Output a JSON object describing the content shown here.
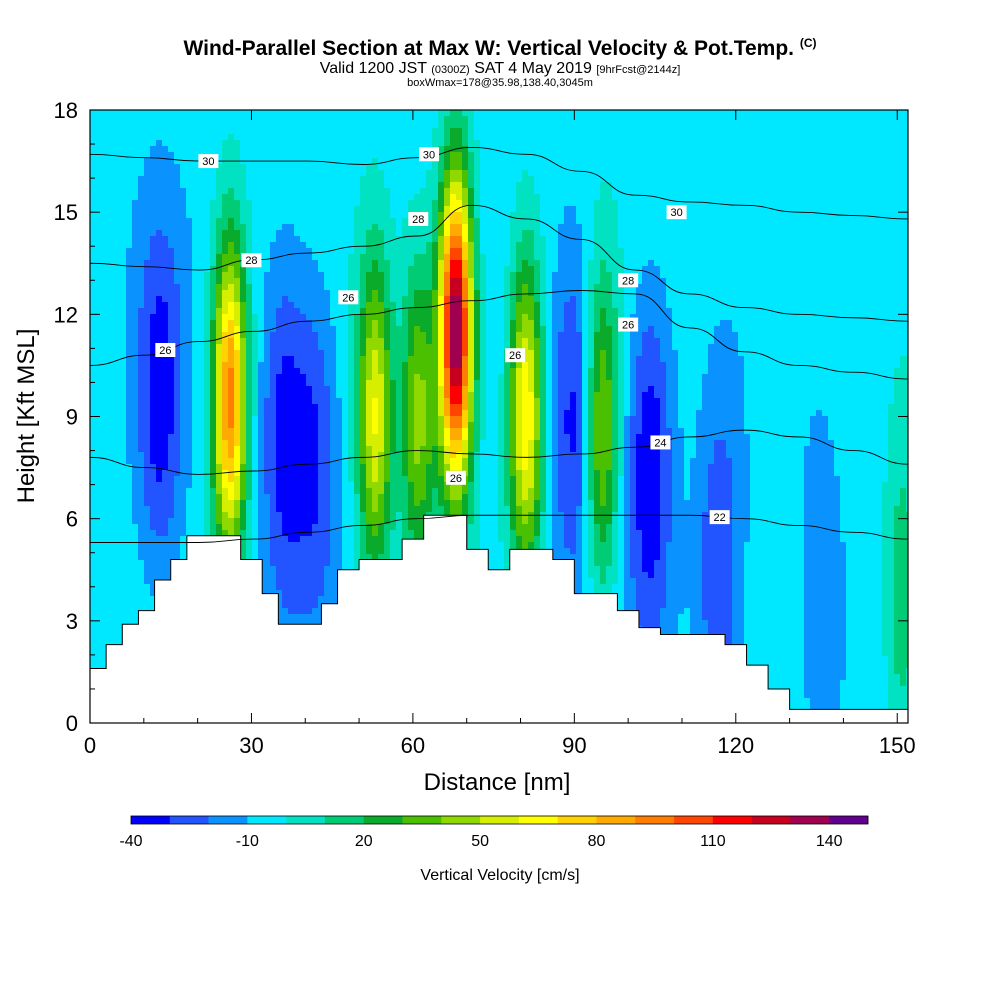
{
  "header": {
    "title": "Wind-Parallel Section at Max W: Vertical Velocity & Pot.Temp.",
    "title_mark": "(C)",
    "subtitle_main": "Valid 1200 JST",
    "subtitle_z": "(0300Z)",
    "subtitle_date": "SAT 4 May 2019",
    "subtitle_fcst": "[9hrFcst@2144z]",
    "subline": "boxWmax=178@35.98,138.40,3045m"
  },
  "chart_data": {
    "type": "heatmap",
    "xlabel": "Distance [nm]",
    "ylabel": "Height [Kft MSL]",
    "xlim": [
      0,
      152
    ],
    "ylim": [
      0,
      18
    ],
    "x_ticks": [
      0,
      30,
      60,
      90,
      120,
      150
    ],
    "y_ticks": [
      0,
      3,
      6,
      9,
      12,
      15,
      18
    ],
    "background_value": -5,
    "updraft_cores": [
      {
        "x": 26,
        "y": 9.5,
        "w": 100
      },
      {
        "x": 53,
        "y": 9.0,
        "w": 65
      },
      {
        "x": 61,
        "y": 9.0,
        "w": 50
      },
      {
        "x": 68,
        "y": 11.5,
        "w": 150
      },
      {
        "x": 81,
        "y": 9.0,
        "w": 75
      },
      {
        "x": 95,
        "y": 8.5,
        "w": 50
      },
      {
        "x": 151,
        "y": 3.5,
        "w": 25
      }
    ],
    "downdraft_cores": [
      {
        "x": 13,
        "y": 9.5,
        "w": -30
      },
      {
        "x": 36,
        "y": 8.5,
        "w": -30
      },
      {
        "x": 42,
        "y": 8.0,
        "w": -25
      },
      {
        "x": 90,
        "y": 9.0,
        "w": -30
      },
      {
        "x": 104,
        "y": 7.5,
        "w": -35
      },
      {
        "x": 117,
        "y": 4.5,
        "w": -25
      },
      {
        "x": 136,
        "y": 3.0,
        "w": -15
      }
    ],
    "terrain_kft": {
      "x": [
        0,
        3,
        6,
        9,
        12,
        15,
        18,
        24,
        28,
        32,
        35,
        40,
        43,
        46,
        50,
        55,
        58,
        62,
        66,
        70,
        74,
        78,
        82,
        86,
        90,
        94,
        98,
        102,
        106,
        110,
        114,
        118,
        122,
        126,
        130,
        140,
        151
      ],
      "y": [
        1.6,
        2.3,
        2.9,
        3.3,
        4.2,
        4.8,
        5.5,
        5.5,
        4.8,
        3.8,
        2.9,
        2.9,
        3.5,
        4.5,
        4.8,
        4.8,
        5.4,
        6.1,
        6.1,
        5.1,
        4.5,
        5.1,
        5.1,
        4.8,
        3.8,
        3.8,
        3.3,
        2.8,
        2.6,
        2.6,
        2.6,
        2.3,
        1.7,
        1.0,
        0.4,
        0.4,
        0.4
      ]
    },
    "theta_contours": [
      {
        "label": "22",
        "label_x": 117,
        "y": [
          5.3,
          5.3,
          5.3,
          5.4,
          5.6,
          5.8,
          6.0,
          6.1,
          6.1,
          6.1,
          6.1,
          6.1,
          6.0,
          5.8,
          5.6,
          5.4
        ]
      },
      {
        "label": "24",
        "label_x": 106,
        "y": [
          7.8,
          7.5,
          7.3,
          7.4,
          7.6,
          7.8,
          8.0,
          7.9,
          7.8,
          7.9,
          8.1,
          8.4,
          8.6,
          8.4,
          8.0,
          7.6
        ]
      },
      {
        "label": "26",
        "label_x": 14,
        "y": [
          10.5,
          10.8,
          11.2,
          11.5,
          11.8,
          12.0,
          12.2,
          12.4,
          12.6,
          12.7,
          12.6,
          11.6,
          10.9,
          10.5,
          10.3,
          10.1
        ]
      },
      {
        "label": "28",
        "label_x": 30,
        "y": [
          13.5,
          13.4,
          13.3,
          13.6,
          13.8,
          14.0,
          14.3,
          15.2,
          14.8,
          14.2,
          13.3,
          12.6,
          12.2,
          12.0,
          11.9,
          11.8
        ]
      },
      {
        "label": "30",
        "label_x": 22,
        "y": [
          16.7,
          16.6,
          16.5,
          16.5,
          16.5,
          16.4,
          16.6,
          16.9,
          16.7,
          16.2,
          15.5,
          15.3,
          15.2,
          15.0,
          14.9,
          14.8
        ]
      }
    ],
    "extra_contour_labels": [
      {
        "label": "30",
        "x": 63,
        "y": 16.7
      },
      {
        "label": "30",
        "x": 109,
        "y": 15.0
      },
      {
        "label": "28",
        "x": 61,
        "y": 14.8
      },
      {
        "label": "28",
        "x": 100,
        "y": 13.0
      },
      {
        "label": "26",
        "x": 48,
        "y": 12.5
      },
      {
        "label": "26",
        "x": 79,
        "y": 10.8
      },
      {
        "label": "26",
        "x": 100,
        "y": 11.7
      },
      {
        "label": "26",
        "x": 68,
        "y": 7.2
      }
    ],
    "colorbar": {
      "title": "Vertical Velocity [cm/s]",
      "min": -40,
      "step": 10,
      "colors": [
        "#0000ff",
        "#2255ff",
        "#0a92ff",
        "#00e8ff",
        "#00e2c2",
        "#00cc75",
        "#0aaa2a",
        "#4ac000",
        "#8fd800",
        "#d6ee00",
        "#ffff00",
        "#ffd200",
        "#ffaa00",
        "#ff7d00",
        "#ff4500",
        "#ff0000",
        "#c80020",
        "#a00050",
        "#600090"
      ],
      "tick_labels": [
        "-40",
        "-10",
        "20",
        "50",
        "80",
        "110",
        "140"
      ]
    }
  }
}
